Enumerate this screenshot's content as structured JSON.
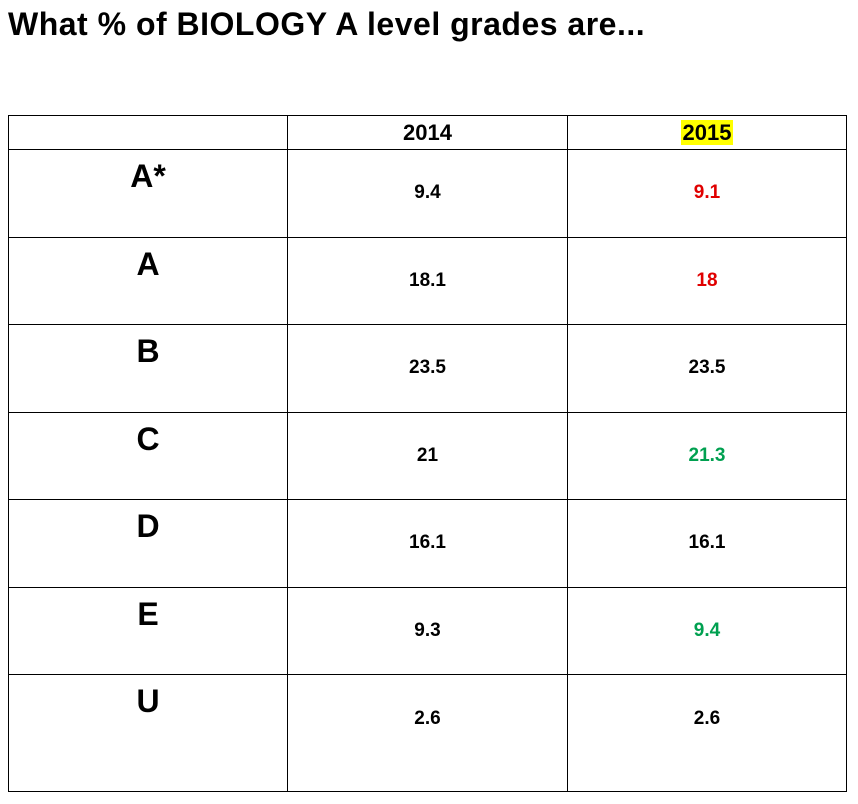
{
  "title": "What % of BIOLOGY A level grades are...",
  "table": {
    "columns": [
      "2014",
      "2015"
    ],
    "rows": [
      {
        "grade": "A*",
        "values": [
          9.4,
          9.1
        ]
      },
      {
        "grade": "A",
        "values": [
          18.1,
          18
        ]
      },
      {
        "grade": "B",
        "values": [
          23.5,
          23.5
        ]
      },
      {
        "grade": "C",
        "values": [
          21,
          21.3
        ]
      },
      {
        "grade": "D",
        "values": [
          16.1,
          16.1
        ]
      },
      {
        "grade": "E",
        "values": [
          9.3,
          9.4
        ]
      },
      {
        "grade": "U",
        "values": [
          2.6,
          2.6
        ]
      }
    ]
  }
}
